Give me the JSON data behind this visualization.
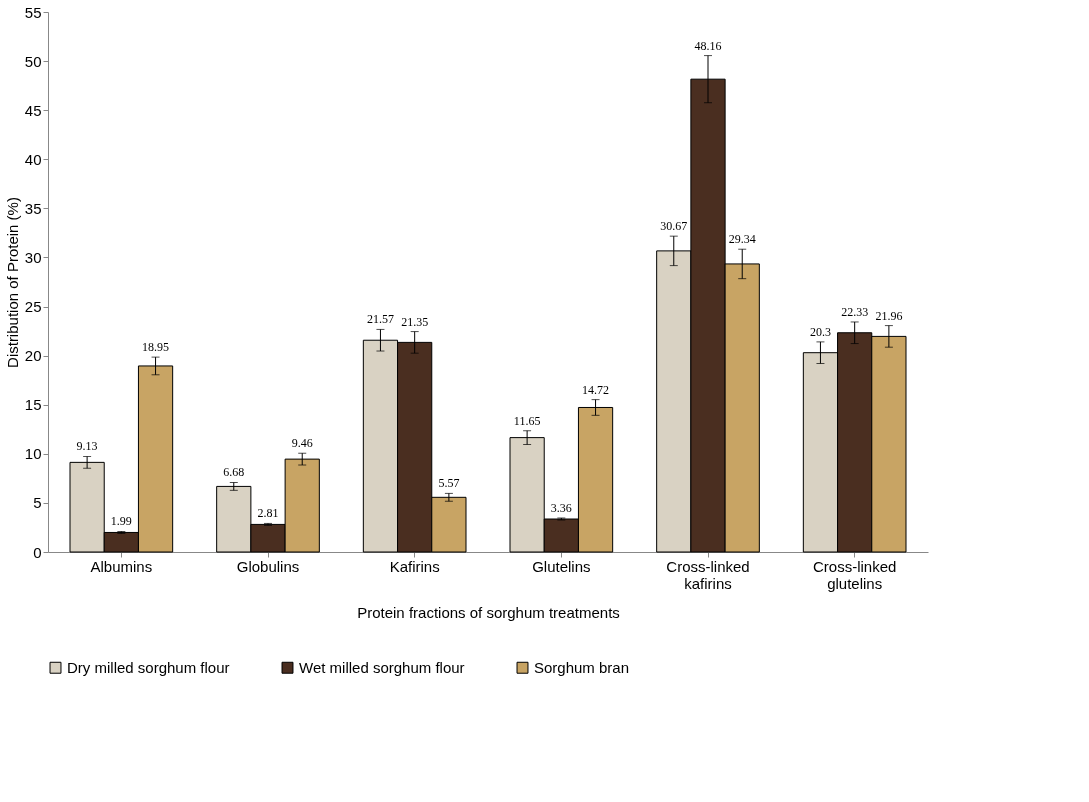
{
  "chart_data": {
    "type": "bar",
    "xlabel": "Protein fractions of sorghum treatments",
    "ylabel": "Distribution of Protein  (%)",
    "categories": [
      "Albumins",
      "Globulins",
      "Kafirins",
      "Glutelins",
      "Cross-linked kafirins",
      "Cross-linked glutelins"
    ],
    "series": [
      {
        "name": "Dry milled sorghum flour",
        "color": "#d9d2c3",
        "values": [
          9.13,
          6.68,
          21.57,
          11.65,
          30.67,
          20.3
        ],
        "errors": [
          0.6,
          0.4,
          1.1,
          0.7,
          1.5,
          1.1
        ]
      },
      {
        "name": "Wet milled sorghum flour",
        "color": "#4a2e20",
        "values": [
          1.99,
          2.81,
          21.35,
          3.36,
          48.16,
          22.33
        ],
        "errors": [
          0.1,
          0.1,
          1.1,
          0.1,
          2.4,
          1.1
        ]
      },
      {
        "name": "Sorghum bran",
        "color": "#c8a464",
        "values": [
          18.95,
          9.46,
          5.57,
          14.72,
          29.34,
          21.96
        ],
        "errors": [
          0.9,
          0.6,
          0.4,
          0.8,
          1.5,
          1.1
        ]
      }
    ],
    "ylim": [
      0,
      55
    ],
    "yticks": [
      0,
      5,
      10,
      15,
      20,
      25,
      30,
      35,
      40,
      45,
      50,
      55
    ],
    "grid": false,
    "legend": "bottom",
    "data_labels": true
  }
}
